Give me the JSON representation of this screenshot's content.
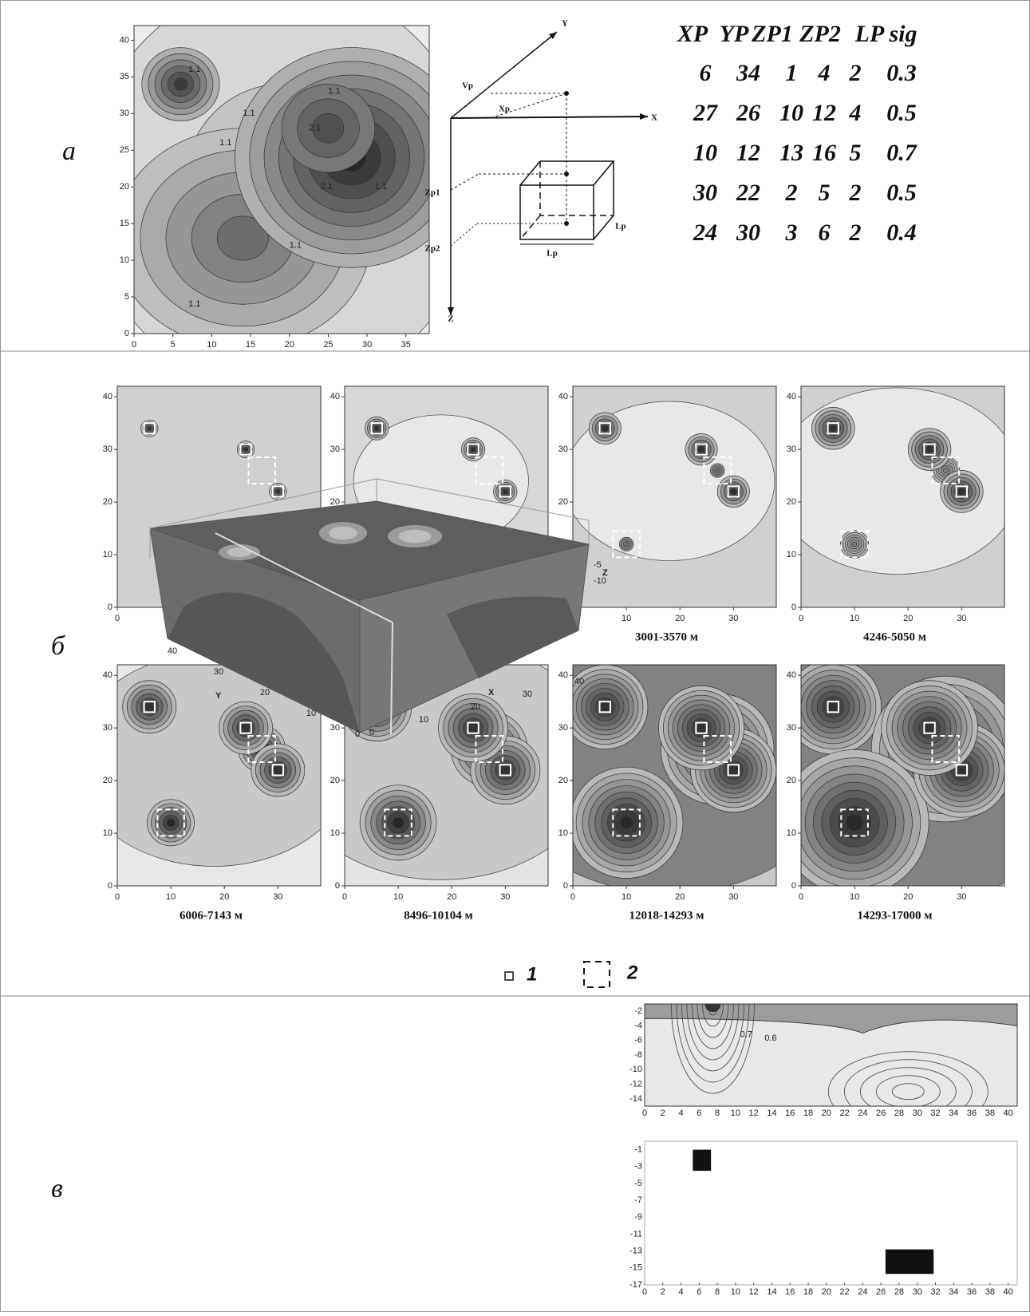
{
  "panel_labels": [
    "а",
    "б",
    "в"
  ],
  "panel_a": {
    "x_ticks": [
      "0",
      "5",
      "10",
      "15",
      "20",
      "25",
      "30",
      "35"
    ],
    "y_ticks": [
      "0",
      "5",
      "10",
      "15",
      "20",
      "25",
      "30",
      "35",
      "40"
    ],
    "contour_labels": [
      "1.1",
      "1.1",
      "1.1",
      "2.1",
      "2.1",
      "1.1",
      "1.1",
      "1.1",
      "1.1"
    ],
    "diagram_labels": {
      "x": "X",
      "y": "Y",
      "z": "Z",
      "yp": "Vp",
      "xp": "Xp",
      "zp1": "Zp1",
      "zp2": "Zp2",
      "lp_side": "Lp",
      "lp_bottom": "Lp"
    },
    "table": {
      "header": [
        "XP",
        "YP",
        "ZP1",
        "ZP2",
        "LP",
        "sig"
      ],
      "rows": [
        [
          "6",
          "34",
          "1",
          "4",
          "2",
          "0.3"
        ],
        [
          "27",
          "26",
          "10",
          "12",
          "4",
          "0.5"
        ],
        [
          "10",
          "12",
          "13",
          "16",
          "5",
          "0.7"
        ],
        [
          "30",
          "22",
          "2",
          "5",
          "2",
          "0.5"
        ],
        [
          "24",
          "30",
          "3",
          "6",
          "2",
          "0.4"
        ]
      ]
    }
  },
  "panel_b": {
    "x_ticks": [
      "0",
      "10",
      "20",
      "30"
    ],
    "y_ticks": [
      "0",
      "10",
      "20",
      "30",
      "40"
    ],
    "captions": [
      "1500-1784 м",
      "2122-2524 м",
      "3001-3570 м",
      "4246-5050 м",
      "6006-7143 м",
      "8496-10104 м",
      "12018-14293 м",
      "14293-17000 м"
    ],
    "legend": [
      "1",
      "2"
    ]
  },
  "panel_c": {
    "box_ticks": [
      "0",
      "10",
      "20",
      "30",
      "40"
    ],
    "box_z_ticks": [
      "-5",
      "-10"
    ],
    "box_axis_labels": [
      "Y",
      "X",
      "Z"
    ],
    "section_x_ticks": [
      "0",
      "2",
      "4",
      "6",
      "8",
      "10",
      "12",
      "14",
      "16",
      "18",
      "20",
      "22",
      "24",
      "26",
      "28",
      "30",
      "32",
      "34",
      "36",
      "38",
      "40"
    ],
    "section_top_y_ticks": [
      "-2",
      "-4",
      "-6",
      "-8",
      "-10",
      "-12",
      "-14"
    ],
    "section_bottom_y_ticks": [
      "-1",
      "-3",
      "-5",
      "-7",
      "-9",
      "-11",
      "-13",
      "-15",
      "-17"
    ],
    "contour_labels": [
      "0.7",
      "0.6"
    ]
  }
}
